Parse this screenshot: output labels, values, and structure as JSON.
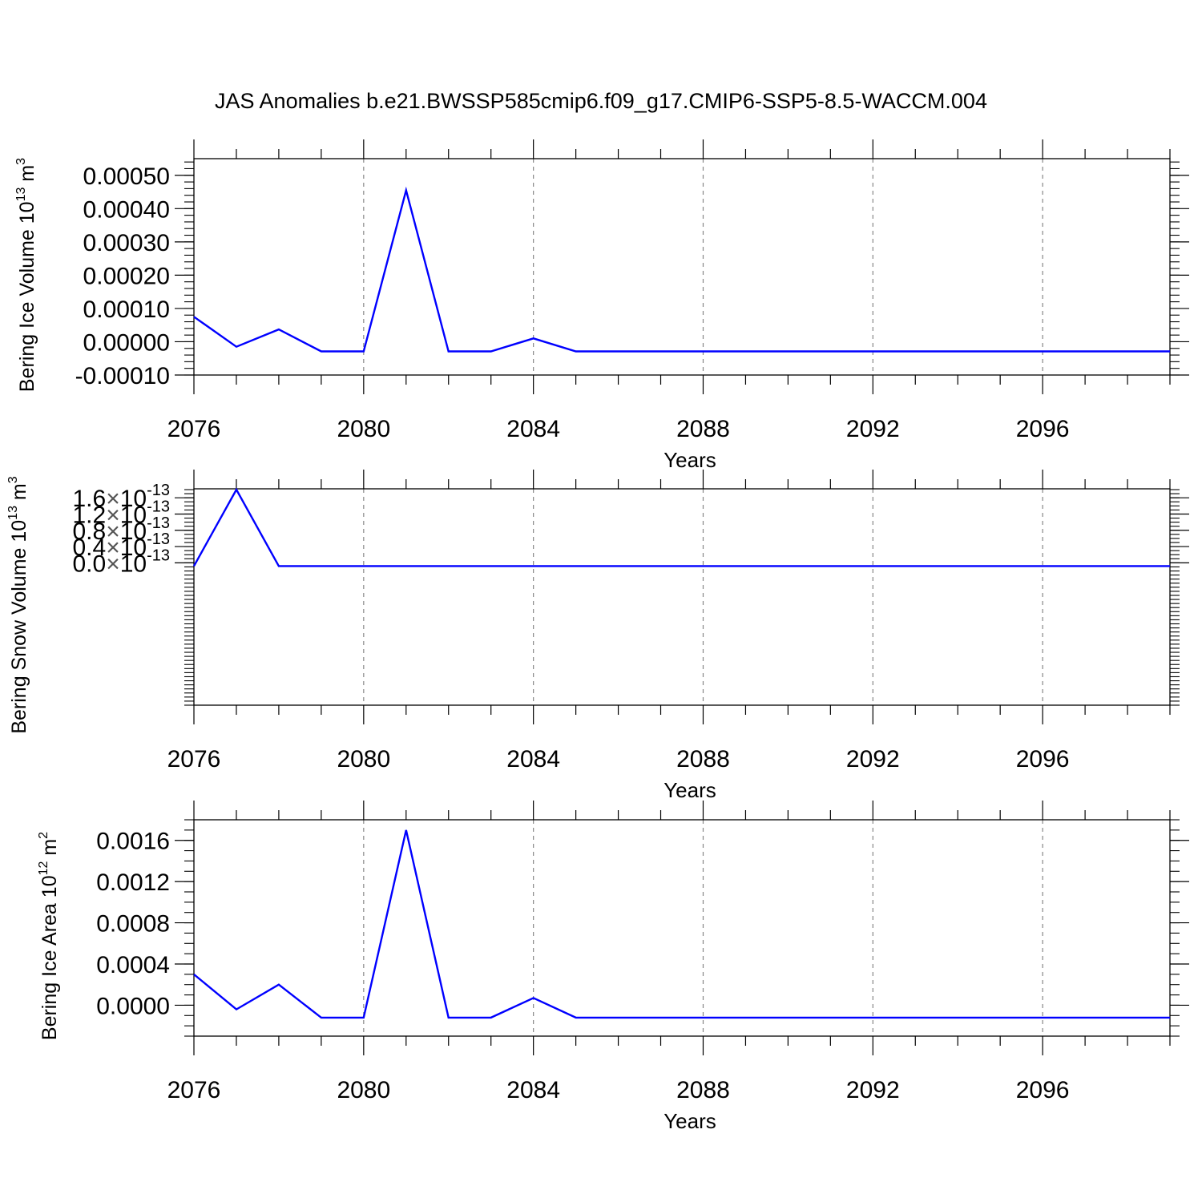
{
  "title": "JAS Anomalies b.e21.BWSSP585cmip6.f09_g17.CMIP6-SSP5-8.5-WACCM.004",
  "line_color": "#0000ff",
  "chart_data": [
    {
      "type": "line",
      "ylabel": "Bering Ice Volume 10",
      "ylabel_sup": "13",
      "ylabel_unit": " m",
      "ylabel_unit_sup": "3",
      "xlabel": "Years",
      "xlim": [
        2076,
        2099
      ],
      "ylim": [
        -0.0001,
        0.00055
      ],
      "yticks": [
        -0.0001,
        0.0,
        0.0001,
        0.0002,
        0.0003,
        0.0004,
        0.0005
      ],
      "ytick_labels": [
        "-0.00010",
        "0.00000",
        "0.00010",
        "0.00020",
        "0.00030",
        "0.00040",
        "0.00050"
      ],
      "y_minor_step": 2e-05,
      "xticks": [
        2076,
        2080,
        2084,
        2088,
        2092,
        2096
      ],
      "xtick_labels": [
        "2076",
        "2080",
        "2084",
        "2088",
        "2092",
        "2096"
      ],
      "x": [
        2076,
        2077,
        2078,
        2079,
        2080,
        2081,
        2082,
        2083,
        2084,
        2085,
        2086,
        2087,
        2088,
        2089,
        2090,
        2091,
        2092,
        2093,
        2094,
        2095,
        2096,
        2097,
        2098,
        2099
      ],
      "values": [
        7.5e-05,
        -1.5e-05,
        3.7e-05,
        -2.9e-05,
        -2.9e-05,
        0.000455,
        -2.9e-05,
        -2.9e-05,
        1e-05,
        -2.9e-05,
        -2.9e-05,
        -2.9e-05,
        -2.9e-05,
        -2.9e-05,
        -2.9e-05,
        -2.9e-05,
        -2.9e-05,
        -2.9e-05,
        -2.9e-05,
        -2.9e-05,
        -2.9e-05,
        -2.9e-05,
        -2.9e-05,
        -2.9e-05
      ],
      "grid": "vertical dashed"
    },
    {
      "type": "line",
      "ylabel": "Bering Snow Volume 10",
      "ylabel_sup": "13",
      "ylabel_unit": " m",
      "ylabel_unit_sup": "3",
      "xlabel": "Years",
      "xlim": [
        2076,
        2099
      ],
      "ylim": [
        -3.5e-16,
        1.82e-16
      ],
      "yticks": [
        0.0,
        4e-17,
        8e-17,
        1.2e-16,
        1.6e-16
      ],
      "ytick_labels": [
        {
          "mantissa": "0.0",
          "times": "×",
          "base": "10",
          "exp": "-13"
        },
        {
          "mantissa": "0.4",
          "times": "×",
          "base": "10",
          "exp": "-13"
        },
        {
          "mantissa": "0.8",
          "times": "×",
          "base": "10",
          "exp": "-13"
        },
        {
          "mantissa": "1.2",
          "times": "×",
          "base": "10",
          "exp": "-13"
        },
        {
          "mantissa": "1.6",
          "times": "×",
          "base": "10",
          "exp": "-13"
        }
      ],
      "y_minor_step": 1e-17,
      "xticks": [
        2076,
        2080,
        2084,
        2088,
        2092,
        2096
      ],
      "xtick_labels": [
        "2076",
        "2080",
        "2084",
        "2088",
        "2092",
        "2096"
      ],
      "x": [
        2076,
        2077,
        2078,
        2079,
        2080,
        2081,
        2082,
        2083,
        2084,
        2085,
        2086,
        2087,
        2088,
        2089,
        2090,
        2091,
        2092,
        2093,
        2094,
        2095,
        2096,
        2097,
        2098,
        2099
      ],
      "values": [
        -8e-18,
        1.8e-16,
        -8e-18,
        -8e-18,
        -8e-18,
        -8e-18,
        -8e-18,
        -8e-18,
        -8e-18,
        -8e-18,
        -8e-18,
        -8e-18,
        -8e-18,
        -8e-18,
        -8e-18,
        -8e-18,
        -8e-18,
        -8e-18,
        -8e-18,
        -8e-18,
        -8e-18,
        -8e-18,
        -8e-18,
        -8e-18
      ],
      "grid": "vertical dashed"
    },
    {
      "type": "line",
      "ylabel": "Bering Ice Area 10",
      "ylabel_sup": "12",
      "ylabel_unit": " m",
      "ylabel_unit_sup": "2",
      "xlabel": "Years",
      "xlim": [
        2076,
        2099
      ],
      "ylim": [
        -0.0003,
        0.0018
      ],
      "yticks": [
        0.0,
        0.0004,
        0.0008,
        0.0012,
        0.0016
      ],
      "ytick_labels": [
        "0.0000",
        "0.0004",
        "0.0008",
        "0.0012",
        "0.0016"
      ],
      "y_minor_step": 0.0001,
      "xticks": [
        2076,
        2080,
        2084,
        2088,
        2092,
        2096
      ],
      "xtick_labels": [
        "2076",
        "2080",
        "2084",
        "2088",
        "2092",
        "2096"
      ],
      "x": [
        2076,
        2077,
        2078,
        2079,
        2080,
        2081,
        2082,
        2083,
        2084,
        2085,
        2086,
        2087,
        2088,
        2089,
        2090,
        2091,
        2092,
        2093,
        2094,
        2095,
        2096,
        2097,
        2098,
        2099
      ],
      "values": [
        0.0003,
        -4e-05,
        0.0002,
        -0.00012,
        -0.00012,
        0.0017,
        -0.00012,
        -0.00012,
        7e-05,
        -0.00012,
        -0.00012,
        -0.00012,
        -0.00012,
        -0.00012,
        -0.00012,
        -0.00012,
        -0.00012,
        -0.00012,
        -0.00012,
        -0.00012,
        -0.00012,
        -0.00012,
        -0.00012,
        -0.00012
      ],
      "grid": "vertical dashed"
    }
  ]
}
